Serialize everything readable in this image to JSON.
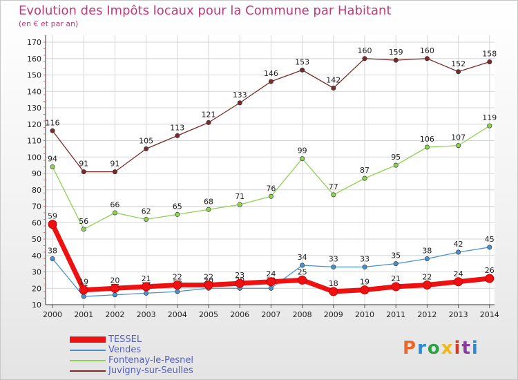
{
  "title": "Evolution des Impôts locaux pour la Commune par Habitant",
  "subtitle": "(en € et par an)",
  "logo": {
    "text": "Proxiti",
    "colors": [
      "#e8672a",
      "#2d8ad1",
      "#2fa043",
      "#f2b81a",
      "#d33a2c",
      "#8a3d9c",
      "#2d8ad1"
    ]
  },
  "chart_data": {
    "type": "line",
    "title": "Evolution des Impôts locaux pour la Commune par Habitant",
    "subtitle": "(en € et par an)",
    "x": [
      2000,
      2001,
      2002,
      2003,
      2004,
      2005,
      2006,
      2007,
      2008,
      2009,
      2010,
      2011,
      2012,
      2013,
      2014
    ],
    "ylim": [
      10,
      170
    ],
    "yticks": [
      10,
      20,
      30,
      40,
      50,
      60,
      70,
      80,
      90,
      100,
      110,
      120,
      130,
      140,
      150,
      160,
      170
    ],
    "grid": true,
    "legend": "bottom-left",
    "series": [
      {
        "name": "TESSEL",
        "color": "#ee1111",
        "values": [
          59,
          19,
          20,
          21,
          22,
          22,
          23,
          24,
          25,
          18,
          19,
          21,
          22,
          24,
          26
        ]
      },
      {
        "name": "Vendes",
        "color": "#4a90cc",
        "values": [
          38,
          15,
          16,
          17,
          18,
          20,
          20,
          20,
          34,
          33,
          33,
          35,
          38,
          42,
          45
        ]
      },
      {
        "name": "Fontenay-le-Pesnel",
        "color": "#8ed055",
        "values": [
          94,
          56,
          66,
          62,
          65,
          68,
          71,
          76,
          99,
          77,
          87,
          95,
          106,
          107,
          119
        ]
      },
      {
        "name": "Juvigny-sur-Seulles",
        "color": "#7a2a2a",
        "values": [
          116,
          91,
          91,
          105,
          113,
          121,
          133,
          146,
          153,
          142,
          160,
          159,
          160,
          152,
          158
        ]
      }
    ]
  }
}
